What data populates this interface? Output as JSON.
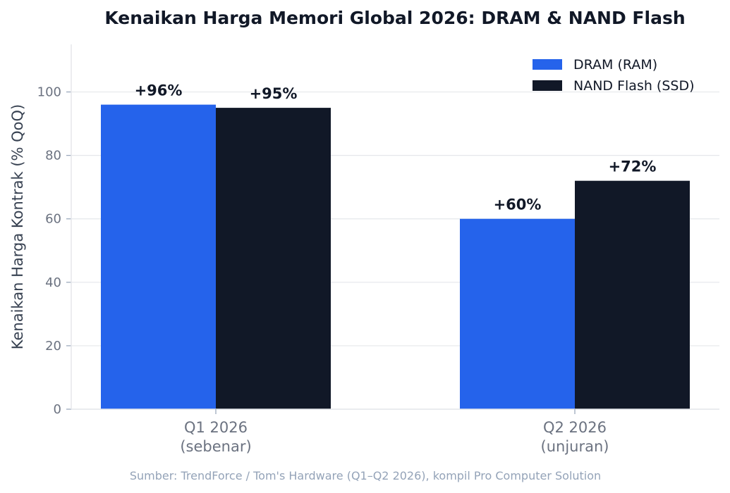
{
  "chart_data": {
    "type": "bar",
    "title": "Kenaikan Harga Memori Global 2026: DRAM & NAND Flash",
    "xlabel": "",
    "ylabel": "Kenaikan Harga Kontrak (% QoQ)",
    "categories": [
      [
        "Q1 2026",
        "(sebenar)"
      ],
      [
        "Q2 2026",
        "(unjuran)"
      ]
    ],
    "series": [
      {
        "name": "DRAM (RAM)",
        "values": [
          96,
          60
        ],
        "labels": [
          "+96%",
          "+60%"
        ],
        "color": "#2563eb"
      },
      {
        "name": "NAND Flash (SSD)",
        "values": [
          95,
          72
        ],
        "labels": [
          "+95%",
          "+72%"
        ],
        "color": "#111827"
      }
    ],
    "ylim": [
      0,
      115
    ],
    "yticks": [
      0,
      20,
      40,
      60,
      80,
      100
    ],
    "grid": true,
    "legend_position": "top-right",
    "source": "Sumber: TrendForce / Tom's Hardware (Q1–Q2 2026), kompil Pro Computer Solution"
  }
}
